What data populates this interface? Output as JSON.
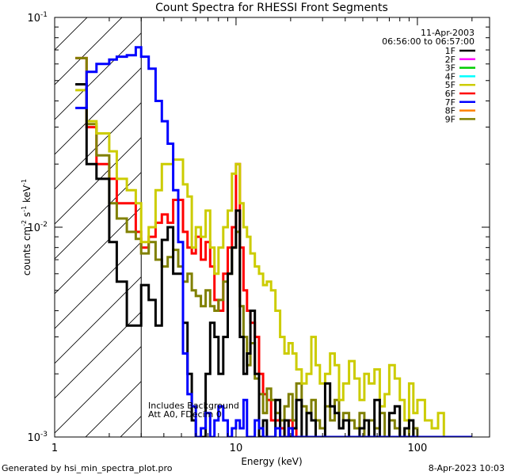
{
  "chart_data": {
    "type": "line",
    "title": "Count Spectra for RHESSI Front Segments",
    "xlabel": "Energy (keV)",
    "ylabel": "counts cm",
    "ylabel_sup1": "-2",
    "ylabel_mid": " s",
    "ylabel_sup2": "-1",
    "ylabel_end": " keV",
    "ylabel_sup3": "-1",
    "x_scale": "log",
    "y_scale": "log",
    "xlim": [
      1,
      250
    ],
    "ylim": [
      0.001,
      0.1
    ],
    "x_tick_labels": [
      {
        "value": 1,
        "label": "1"
      },
      {
        "value": 10,
        "label": "10"
      },
      {
        "value": 100,
        "label": "100"
      }
    ],
    "y_tick_labels": [
      {
        "value": 0.1,
        "base": "10",
        "exp": "-1"
      },
      {
        "value": 0.01,
        "base": "10",
        "exp": "-2"
      },
      {
        "value": 0.001,
        "base": "10",
        "exp": "-3"
      }
    ],
    "date": "11-Apr-2003",
    "time_range": "06:56:00 to 06:57:00",
    "annotation_line1": "Includes Background",
    "annotation_line2": "Att A0, FDecim 0",
    "shaded_region_keV": [
      1,
      3
    ],
    "footer_left": "Generated by hsi_min_spectra_plot.pro",
    "footer_right": "8-Apr-2023 10:03",
    "edges": [
      1.3,
      1.5,
      1.7,
      2.0,
      2.2,
      2.5,
      2.8,
      3.0,
      3.3,
      3.6,
      3.9,
      4.2,
      4.5,
      4.8,
      5.1,
      5.4,
      5.7,
      6.0,
      6.4,
      6.8,
      7.2,
      7.6,
      8.0,
      8.5,
      9.0,
      9.5,
      10.0,
      10.5,
      11.0,
      11.5,
      12.0,
      12.7,
      13.4,
      14.1,
      14.8,
      15.6,
      16.5,
      17.5,
      18.5,
      19.5,
      20.5,
      21.5,
      23.0,
      24.5,
      26.0,
      27.5,
      29.0,
      31.0,
      33.0,
      35.0,
      37.0,
      39.0,
      42.0,
      45.0,
      48.0,
      51.0,
      54.0,
      58.0,
      62.0,
      66.0,
      70.0,
      75.0,
      80.0,
      85.0,
      90.0,
      95.0,
      100.0,
      110.0,
      120.0,
      130.0,
      140.0,
      150.0,
      160.0,
      170.0,
      180.0,
      190.0,
      200.0
    ],
    "series": [
      {
        "name": "1F",
        "color": "#000000",
        "values": [
          0.048,
          0.02,
          0.017,
          0.0085,
          0.0055,
          0.0034,
          0.0034,
          0.0053,
          0.0045,
          0.0034,
          0.0087,
          0.01,
          0.006,
          0.006,
          0.0035,
          0.002,
          0.0012,
          0.001,
          0.001,
          0.002,
          0.0035,
          0.003,
          0.002,
          0.003,
          0.006,
          0.008,
          0.012,
          0.003,
          0.002,
          0.0025,
          0.004,
          0.002,
          0.001,
          0.0012,
          0.001,
          0.001,
          0.0015,
          0.001,
          0.0012,
          0.001,
          0.0011,
          0.0015,
          0.001,
          0.0013,
          0.0012,
          0.001,
          0.001,
          0.0018,
          0.0014,
          0.0013,
          0.0011,
          0.0012,
          0.001,
          0.001,
          0.0011,
          0.0012,
          0.001,
          0.0015,
          0.001,
          0.001,
          0.0013,
          0.0014,
          0.001,
          0.0011,
          0.0012,
          0.001,
          0.001,
          0.001,
          0.001,
          0.001,
          0.001,
          0.001,
          0.001,
          0.001,
          0.001,
          0.001
        ]
      },
      {
        "name": "2F",
        "color": "#ff00ff",
        "values": []
      },
      {
        "name": "3F",
        "color": "#00cc00",
        "values": []
      },
      {
        "name": "4F",
        "color": "#00ffff",
        "values": []
      },
      {
        "name": "5F",
        "color": "#cccc00",
        "values": [
          0.045,
          0.032,
          0.028,
          0.023,
          0.017,
          0.015,
          0.013,
          0.0085,
          0.01,
          0.015,
          0.02,
          0.02,
          0.021,
          0.021,
          0.016,
          0.014,
          0.008,
          0.01,
          0.009,
          0.012,
          0.008,
          0.006,
          0.008,
          0.01,
          0.012,
          0.018,
          0.02,
          0.013,
          0.01,
          0.009,
          0.0075,
          0.0065,
          0.006,
          0.0053,
          0.0055,
          0.005,
          0.004,
          0.003,
          0.0025,
          0.0028,
          0.0025,
          0.0021,
          0.0018,
          0.002,
          0.003,
          0.0022,
          0.0018,
          0.002,
          0.0025,
          0.0022,
          0.0015,
          0.0018,
          0.0023,
          0.0019,
          0.0015,
          0.002,
          0.0018,
          0.0021,
          0.0014,
          0.0016,
          0.0022,
          0.0019,
          0.0015,
          0.0012,
          0.0018,
          0.0013,
          0.0015,
          0.0012,
          0.0011,
          0.0013,
          0.001,
          0.001,
          0.001,
          0.001,
          0.001,
          0.001
        ]
      },
      {
        "name": "6F",
        "color": "#ff0000",
        "values": [
          0.064,
          0.03,
          0.02,
          0.017,
          0.013,
          0.013,
          0.0095,
          0.008,
          0.009,
          0.0105,
          0.0115,
          0.0105,
          0.0135,
          0.0135,
          0.0095,
          0.008,
          0.0075,
          0.009,
          0.007,
          0.0085,
          0.0065,
          0.0045,
          0.004,
          0.006,
          0.008,
          0.01,
          0.02,
          0.008,
          0.005,
          0.004,
          0.0035,
          0.003,
          0.002,
          0.0016,
          0.0015,
          0.0012,
          0.0012,
          0.0011,
          0.001,
          0.0012,
          0.0011,
          0.001,
          0.001,
          0.001,
          0.001,
          0.001,
          0.001,
          0.001,
          0.001,
          0.001,
          0.001,
          0.001,
          0.001,
          0.001,
          0.001,
          0.001,
          0.001,
          0.001,
          0.001,
          0.001,
          0.001,
          0.001,
          0.001,
          0.001,
          0.001,
          0.001,
          0.001,
          0.001,
          0.001,
          0.001,
          0.001,
          0.001,
          0.001,
          0.001,
          0.001,
          0.001
        ]
      },
      {
        "name": "7F",
        "color": "#0000ff",
        "values": [
          0.037,
          0.055,
          0.06,
          0.063,
          0.065,
          0.066,
          0.072,
          0.065,
          0.057,
          0.04,
          0.032,
          0.025,
          0.015,
          0.0085,
          0.0025,
          0.0016,
          0.0014,
          0.001,
          0.0011,
          0.0013,
          0.001,
          0.0012,
          0.0014,
          0.0012,
          0.001,
          0.0011,
          0.0012,
          0.0011,
          0.0015,
          0.001,
          0.001,
          0.0012,
          0.0011,
          0.001,
          0.001,
          0.001,
          0.0011,
          0.001,
          0.001,
          0.0011,
          0.001,
          0.001,
          0.001,
          0.001,
          0.001,
          0.001,
          0.001,
          0.001,
          0.001,
          0.001,
          0.001,
          0.001,
          0.001,
          0.001,
          0.001,
          0.001,
          0.001,
          0.001,
          0.001,
          0.001,
          0.001,
          0.001,
          0.001,
          0.001,
          0.001,
          0.001,
          0.001,
          0.001,
          0.001,
          0.001,
          0.001,
          0.001,
          0.001,
          0.001,
          0.001,
          0.001
        ]
      },
      {
        "name": "8F",
        "color": "#ff8000",
        "values": []
      },
      {
        "name": "9F",
        "color": "#808000",
        "values": [
          0.064,
          0.031,
          0.022,
          0.013,
          0.011,
          0.0095,
          0.0088,
          0.0075,
          0.0085,
          0.007,
          0.0065,
          0.0072,
          0.0078,
          0.0065,
          0.0055,
          0.006,
          0.005,
          0.0047,
          0.0042,
          0.005,
          0.0042,
          0.004,
          0.0045,
          0.0055,
          0.006,
          0.008,
          0.0095,
          0.0042,
          0.003,
          0.0022,
          0.0028,
          0.0019,
          0.0016,
          0.0013,
          0.0017,
          0.0015,
          0.0013,
          0.0012,
          0.0014,
          0.0016,
          0.0012,
          0.0018,
          0.0014,
          0.0013,
          0.0015,
          0.0012,
          0.0011,
          0.0014,
          0.0012,
          0.0015,
          0.0011,
          0.0013,
          0.0012,
          0.0011,
          0.0013,
          0.001,
          0.0012,
          0.0011,
          0.0013,
          0.001,
          0.0012,
          0.0011,
          0.001,
          0.0011,
          0.001,
          0.0011,
          0.001,
          0.001,
          0.001,
          0.001,
          0.001,
          0.001,
          0.001,
          0.001,
          0.001,
          0.001
        ]
      }
    ]
  }
}
